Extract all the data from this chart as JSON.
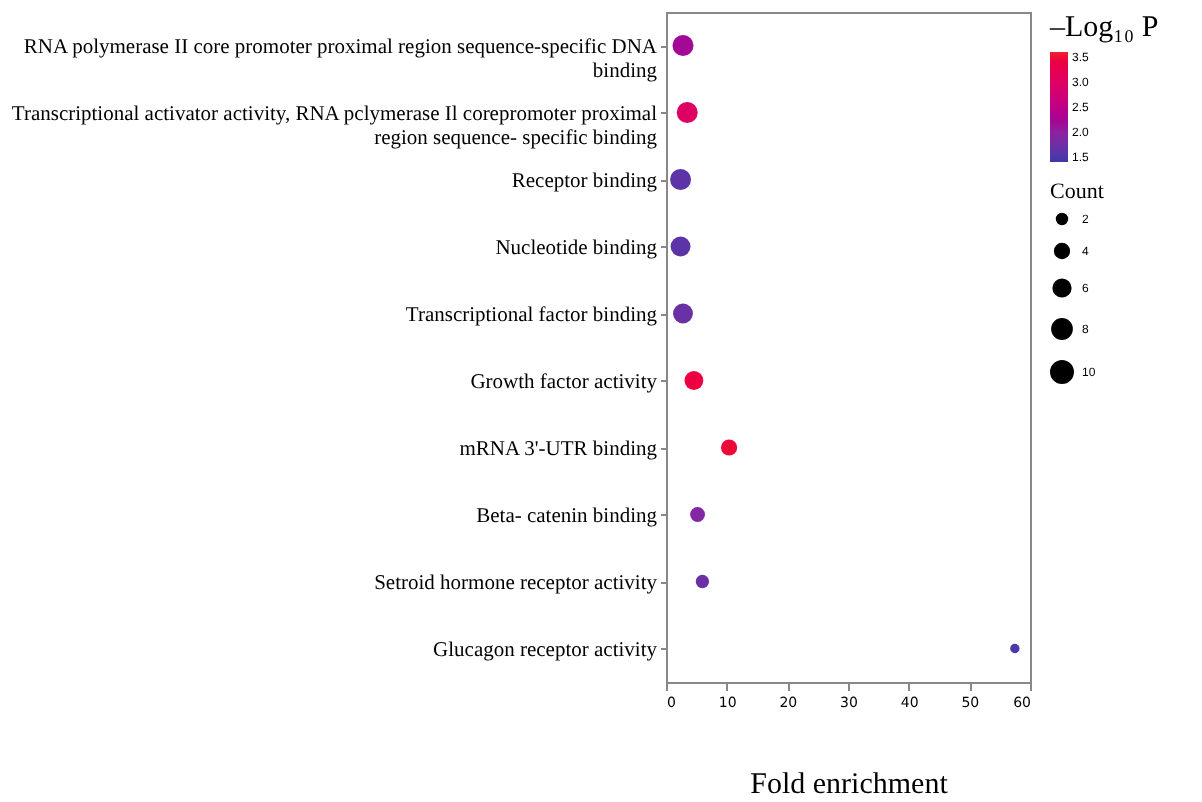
{
  "chart_data": {
    "type": "bubble",
    "orientation": "horizontal",
    "categories": [
      "RNA polymerase II core promoter proximal region sequence-specific DNA binding",
      "Transcriptional activator activity, RNA pclymerase Il corepromoter proximal region sequence- specific binding",
      "Receptor binding",
      "Nucleotide binding",
      "Transcriptional factor binding",
      "Growth factor activity",
      "mRNA 3'-UTR binding",
      "Beta- catenin binding",
      "Setroid  hormone receptor activity",
      "Glucagon receptor activity"
    ],
    "values": [
      2.8,
      3.5,
      2.4,
      2.4,
      2.8,
      4.6,
      10.4,
      5.2,
      6.0,
      57.5
    ],
    "sizes": [
      10,
      10,
      10,
      9,
      9,
      8,
      6,
      5,
      4,
      2
    ],
    "cvalues": [
      2.2,
      3.0,
      1.6,
      1.6,
      1.7,
      3.4,
      3.5,
      1.9,
      1.7,
      1.5
    ],
    "size_legend": [
      2,
      4,
      6,
      8,
      10
    ],
    "clim": [
      1.4,
      3.6
    ],
    "cticks": [
      1.5,
      {
        "value": 2,
        "label": "2.0"
      },
      2.5,
      {
        "value": 3,
        "label": "3.0"
      },
      3.5
    ],
    "xlim": [
      0,
      60
    ],
    "xticks": [
      0,
      10,
      20,
      30,
      40,
      50,
      60
    ],
    "xlabel": "Fold enrichment",
    "clabel": "–Log₁₀ P",
    "legend_title": "Count"
  }
}
